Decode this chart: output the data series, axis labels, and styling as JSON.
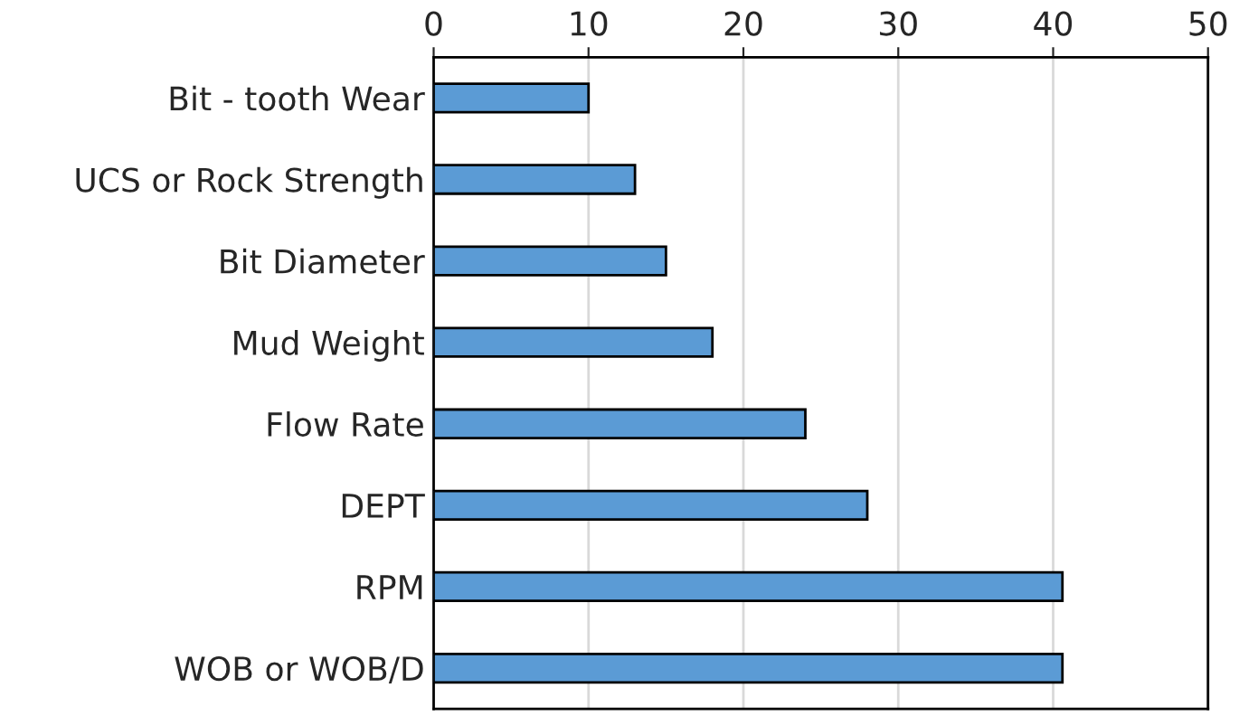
{
  "chart_data": {
    "type": "bar",
    "orientation": "horizontal",
    "categories": [
      "Bit - tooth Wear",
      "UCS or Rock Strength",
      "Bit Diameter",
      "Mud Weight",
      "Flow Rate",
      "DEPT",
      "RPM",
      "WOB or WOB/D"
    ],
    "values": [
      10,
      13,
      15,
      18,
      24,
      28,
      40.6,
      40.6
    ],
    "color": "#5b9bd5",
    "xlim": [
      0,
      50
    ],
    "xticks": [
      0,
      10,
      20,
      30,
      40,
      50
    ],
    "grid": "x",
    "legend": false
  }
}
